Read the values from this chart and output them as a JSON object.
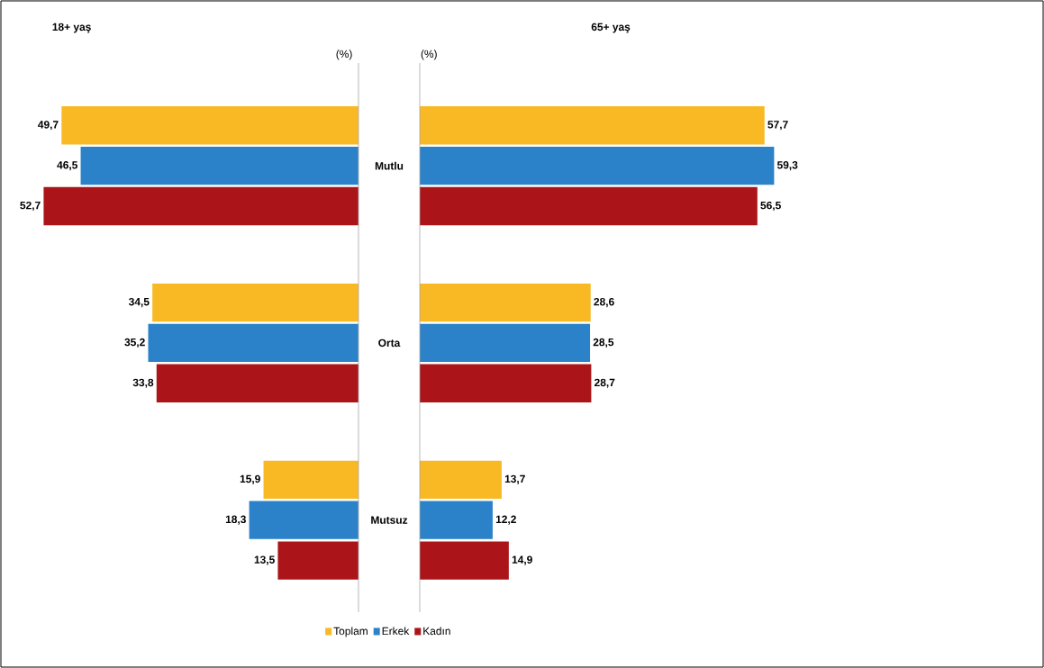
{
  "chart_data": [
    {
      "type": "bar",
      "orientation": "horizontal",
      "title": "18+ yaş",
      "xlabel": "(%)",
      "categories": [
        "Mutlu",
        "Orta",
        "Mutsuz"
      ],
      "xlim": [
        60,
        0
      ],
      "tick_labels": "y",
      "legend": "bottom",
      "series": [
        {
          "name": "Toplam",
          "color": "#f9b924",
          "values": [
            49.7,
            34.5,
            15.9
          ],
          "value_labels": [
            "49,7",
            "34,5",
            "15,9"
          ]
        },
        {
          "name": "Erkek",
          "color": "#2b82c9",
          "values": [
            46.5,
            35.2,
            18.3
          ],
          "value_labels": [
            "46,5",
            "35,2",
            "18,3"
          ]
        },
        {
          "name": "Kadın",
          "color": "#ab1519",
          "values": [
            52.7,
            33.8,
            13.5
          ],
          "value_labels": [
            "52,7",
            "33,8",
            "13,5"
          ]
        }
      ]
    },
    {
      "type": "bar",
      "orientation": "horizontal",
      "title": "65+ yaş",
      "xlabel": "(%)",
      "tick_labels": false,
      "series": [
        {
          "color": "#f9b924",
          "values": [
            57.7,
            28.6,
            13.7
          ],
          "value_labels": [
            "57,7",
            "28,6",
            "13,7"
          ]
        },
        {
          "color": "#2b82c9",
          "values": [
            59.3,
            28.5,
            12.2
          ],
          "value_labels": [
            "59,3",
            "28,5",
            "12,2"
          ]
        },
        {
          "color": "#ab1519",
          "values": [
            56.5,
            28.7,
            14.9
          ],
          "value_labels": [
            "56,5",
            "28,7",
            "14,9"
          ]
        }
      ]
    }
  ]
}
